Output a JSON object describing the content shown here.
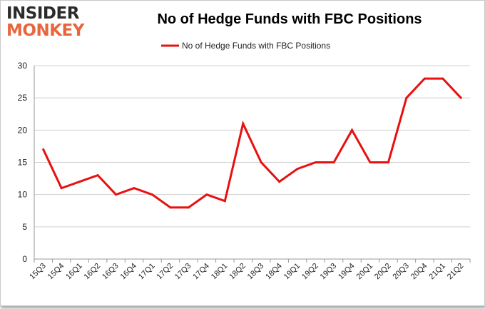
{
  "logo": {
    "line1": "INSIDER",
    "line2": "MONKEY"
  },
  "colors": {
    "line": "#e81010",
    "grid": "#d0d0d0",
    "logo_dark": "#2b2b2b",
    "logo_accent": "#e8663d"
  },
  "chart_data": {
    "type": "line",
    "title": "No of Hedge Funds with FBC Positions",
    "xlabel": "",
    "ylabel": "",
    "ylim": [
      0,
      30
    ],
    "yticks": [
      0,
      5,
      10,
      15,
      20,
      25,
      30
    ],
    "grid": true,
    "legend_position": "top-center",
    "categories": [
      "15Q3",
      "15Q4",
      "16Q1",
      "16Q2",
      "16Q3",
      "16Q4",
      "17Q1",
      "17Q2",
      "17Q3",
      "17Q4",
      "18Q1",
      "18Q2",
      "18Q3",
      "18Q4",
      "19Q1",
      "19Q2",
      "19Q3",
      "19Q4",
      "20Q1",
      "20Q2",
      "20Q3",
      "20Q4",
      "21Q1",
      "21Q2"
    ],
    "series": [
      {
        "name": "No of Hedge Funds with FBC Positions",
        "values": [
          17,
          11,
          12,
          13,
          10,
          11,
          10,
          8,
          8,
          10,
          9,
          21,
          15,
          12,
          14,
          15,
          15,
          20,
          15,
          15,
          25,
          28,
          28,
          25
        ]
      }
    ]
  }
}
